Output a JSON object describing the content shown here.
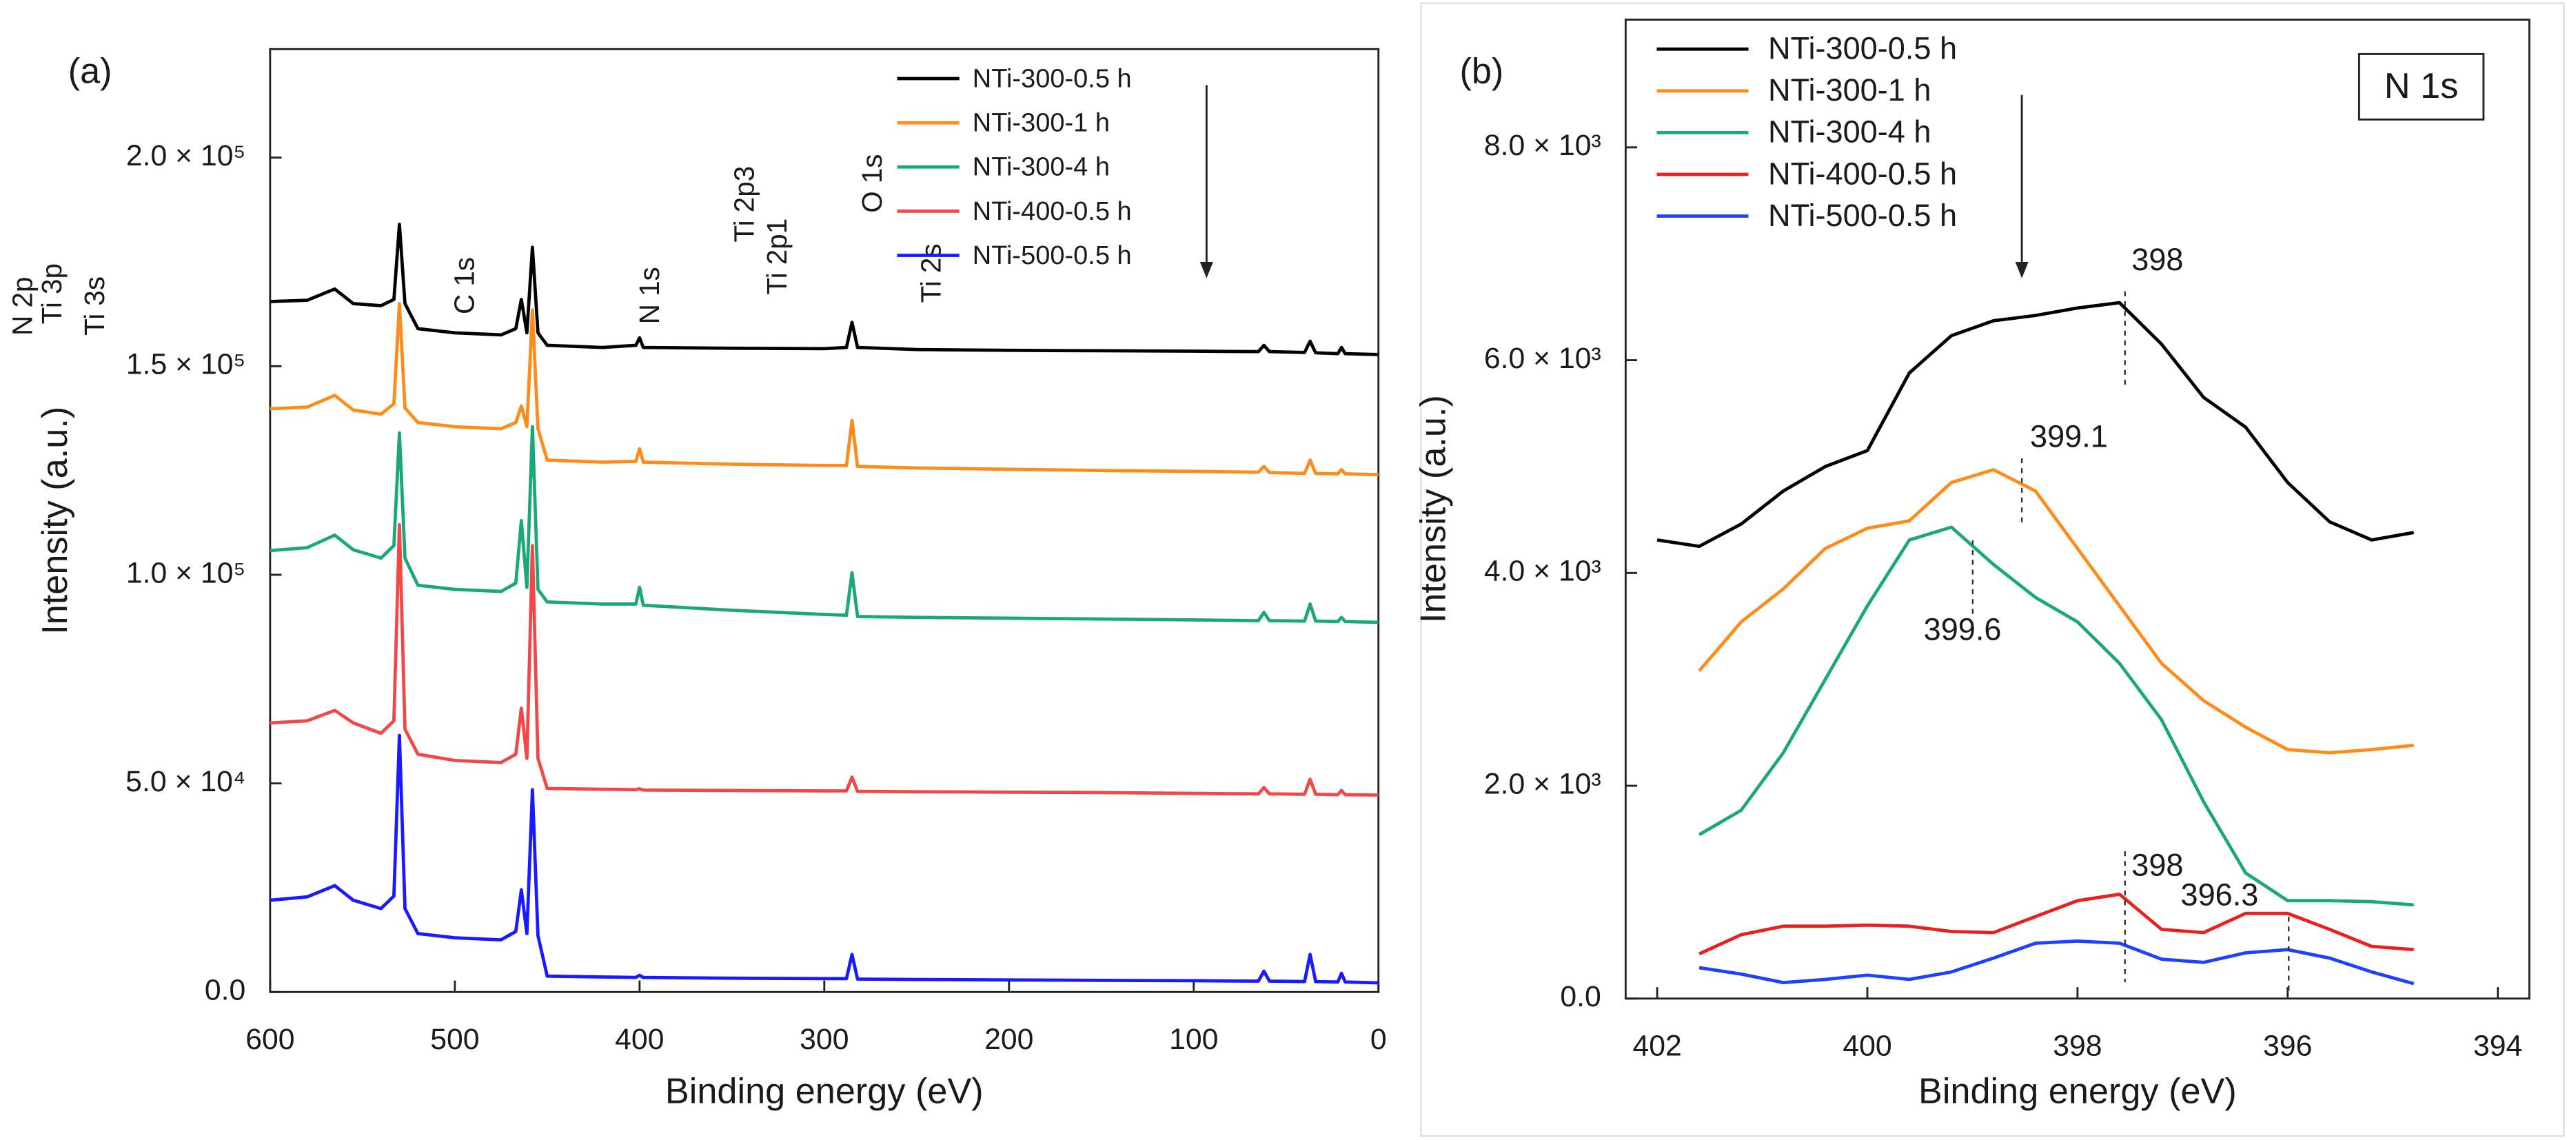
{
  "chart_data": [
    {
      "type": "line",
      "panel_label": "(a)",
      "x_label": "Binding energy (eV)",
      "y_label": "Intensity (a.u.)",
      "xlim": [
        600,
        0
      ],
      "xticks": [
        600,
        500,
        400,
        300,
        200,
        100,
        0
      ],
      "ylim": [
        0,
        226000
      ],
      "yticks": [
        {
          "value": 0,
          "label": "0.0"
        },
        {
          "value": 50000,
          "label": "5.0 × 10⁴"
        },
        {
          "value": 100000,
          "label": "1.0 × 10⁵"
        },
        {
          "value": 150000,
          "label": "1.5 × 10⁵"
        },
        {
          "value": 200000,
          "label": "2.0 × 10⁵"
        }
      ],
      "grid": false,
      "legend": "top-right",
      "annotations": [
        "Ti 2s",
        "O 1s",
        "Ti 2p1",
        "Ti 2p3",
        "N 1s",
        "C 1s",
        "Ti 3s",
        "Ti 3p",
        "N 2p"
      ],
      "x": [
        600,
        580,
        565,
        555,
        540,
        533,
        530,
        527,
        520,
        500,
        475,
        467,
        464,
        461,
        458,
        455,
        450,
        420,
        402,
        400,
        398,
        350,
        300,
        288,
        285,
        282,
        250,
        200,
        150,
        100,
        65,
        62,
        59,
        40,
        37,
        34,
        22,
        20,
        18,
        0
      ],
      "series": [
        {
          "name": "NTi-300-0.5 h",
          "color": "#000000",
          "values": [
            165500,
            165800,
            168500,
            165000,
            164500,
            166000,
            184000,
            165000,
            159000,
            158000,
            157500,
            159000,
            166000,
            158000,
            178500,
            158000,
            155000,
            154500,
            155000,
            156800,
            154500,
            154300,
            154200,
            154500,
            160500,
            154500,
            154000,
            153800,
            153700,
            153600,
            153500,
            155000,
            153500,
            153300,
            156000,
            153200,
            153000,
            154500,
            153000,
            152800
          ]
        },
        {
          "name": "NTi-300-1 h",
          "color": "#ff8c1a",
          "values": [
            139800,
            140200,
            143000,
            139500,
            138500,
            141000,
            165000,
            140000,
            136500,
            135500,
            135000,
            136500,
            140500,
            135500,
            163500,
            135000,
            127500,
            127000,
            127200,
            130200,
            127000,
            126500,
            126200,
            126200,
            137000,
            126000,
            125600,
            125300,
            125000,
            124800,
            124600,
            126000,
            124500,
            124300,
            127500,
            124300,
            124200,
            125200,
            124200,
            124000
          ]
        },
        {
          "name": "NTi-300-4 h",
          "color": "#1aa878",
          "values": [
            105800,
            106500,
            109500,
            106000,
            104000,
            107000,
            134000,
            104000,
            97500,
            96500,
            96000,
            98000,
            113000,
            97000,
            135500,
            96500,
            93500,
            93000,
            93000,
            97000,
            92700,
            91500,
            90500,
            90300,
            100500,
            90000,
            89800,
            89600,
            89400,
            89200,
            89000,
            91000,
            89000,
            88900,
            93000,
            88900,
            88800,
            89800,
            88800,
            88600
          ]
        },
        {
          "name": "NTi-400-0.5 h",
          "color": "#f04848",
          "values": [
            64500,
            65000,
            67500,
            64500,
            62000,
            65000,
            112000,
            63000,
            57000,
            55500,
            55000,
            57000,
            68000,
            56000,
            107000,
            56000,
            48800,
            48600,
            48500,
            48700,
            48400,
            48300,
            48200,
            48200,
            51500,
            48100,
            48000,
            47900,
            47800,
            47600,
            47500,
            49000,
            47500,
            47400,
            51000,
            47400,
            47300,
            48300,
            47300,
            47200
          ]
        },
        {
          "name": "NTi-500-0.5 h",
          "color": "#1a1aff",
          "values": [
            22000,
            22800,
            25500,
            22000,
            20000,
            23000,
            61500,
            20000,
            14000,
            13000,
            12500,
            14500,
            24500,
            14000,
            48500,
            13500,
            3800,
            3600,
            3500,
            4000,
            3500,
            3300,
            3200,
            3200,
            9000,
            3100,
            3000,
            2900,
            2800,
            2700,
            2600,
            5000,
            2600,
            2500,
            9000,
            2500,
            2400,
            4500,
            2400,
            2200
          ]
        }
      ]
    },
    {
      "type": "line",
      "panel_label": "(b)",
      "box_label": "N 1s",
      "x_label": "Binding energy (eV)",
      "y_label": "Intensity (a.u.)",
      "xlim": [
        402.3,
        393.7
      ],
      "xticks": [
        402,
        400,
        398,
        396,
        394
      ],
      "ylim": [
        0,
        9200
      ],
      "yticks": [
        {
          "value": 0,
          "label": "0.0"
        },
        {
          "value": 2000,
          "label": "2.0 × 10³"
        },
        {
          "value": 4000,
          "label": "4.0 × 10³"
        },
        {
          "value": 6000,
          "label": "6.0 × 10³"
        },
        {
          "value": 8000,
          "label": "8.0 × 10³"
        }
      ],
      "grid": false,
      "legend": "top-left",
      "annotations": [
        "398",
        "399.1",
        "399.6",
        "398",
        "396.3"
      ],
      "x": [
        402.0,
        401.6,
        401.2,
        400.8,
        400.4,
        400.0,
        399.6,
        399.2,
        398.8,
        398.4,
        398.0,
        397.6,
        397.2,
        396.8,
        396.4,
        396.0,
        395.6,
        395.2,
        394.8
      ],
      "series": [
        {
          "name": "NTi-300-0.5 h",
          "color": "#000000",
          "values": [
            4310,
            4250,
            4460,
            4770,
            5000,
            5150,
            5880,
            6230,
            6370,
            6420,
            6490,
            6540,
            6150,
            5650,
            5370,
            4850,
            4480,
            4310,
            4380
          ]
        },
        {
          "name": "NTi-300-1 h",
          "color": "#ff8c1a",
          "values": [
            null,
            3080,
            3540,
            3850,
            4230,
            4420,
            4490,
            4850,
            4970,
            4770,
            4230,
            3690,
            3150,
            2800,
            2550,
            2340,
            2310,
            2340,
            2380
          ]
        },
        {
          "name": "NTi-300-4 h",
          "color": "#1aa878",
          "values": [
            null,
            1540,
            1770,
            2310,
            3000,
            3690,
            4310,
            4430,
            4080,
            3770,
            3540,
            3150,
            2620,
            1850,
            1180,
            920,
            920,
            910,
            880
          ]
        },
        {
          "name": "NTi-400-0.5 h",
          "color": "#e82020",
          "values": [
            null,
            420,
            600,
            680,
            680,
            690,
            680,
            630,
            620,
            770,
            920,
            980,
            650,
            620,
            800,
            800,
            650,
            490,
            460
          ]
        },
        {
          "name": "NTi-500-0.5 h",
          "color": "#2040ff",
          "values": [
            null,
            290,
            230,
            150,
            180,
            220,
            180,
            250,
            380,
            520,
            540,
            520,
            370,
            340,
            430,
            460,
            380,
            250,
            140
          ]
        }
      ]
    }
  ]
}
